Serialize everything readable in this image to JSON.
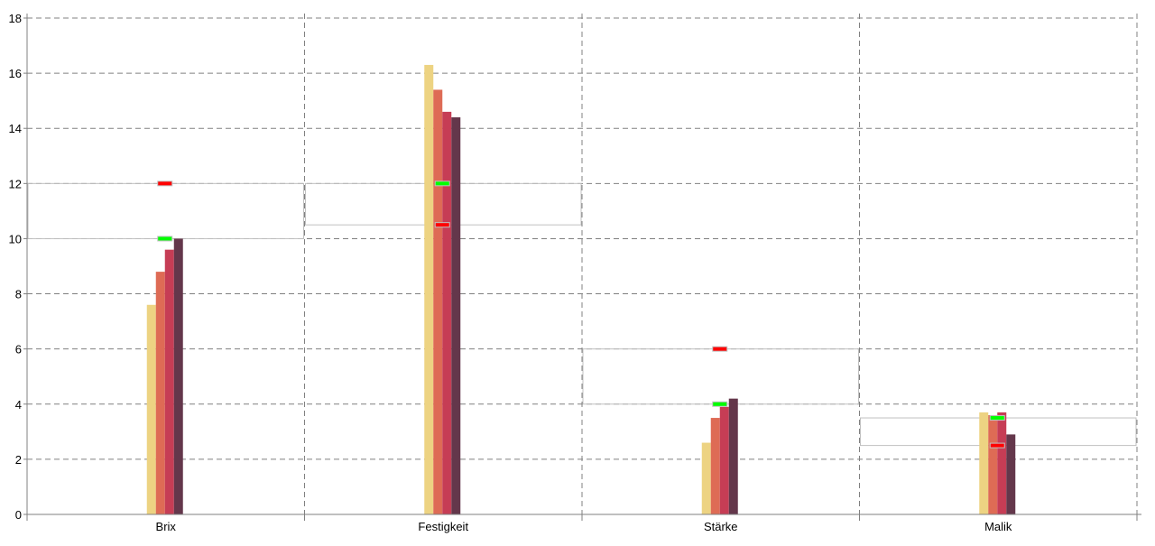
{
  "chart_data": {
    "type": "bar",
    "title": "",
    "xlabel": "",
    "ylabel": "",
    "ylim": [
      0,
      18
    ],
    "yticks": [
      "0",
      "2",
      "4",
      "6",
      "8",
      "10",
      "12",
      "14",
      "16",
      "18"
    ],
    "grid": true,
    "categories": [
      "Brix",
      "Festigkeit",
      "Stärke",
      "Malik"
    ],
    "series": [
      {
        "color": "#EDD382",
        "values": [
          7.6,
          16.3,
          2.6,
          3.7
        ]
      },
      {
        "color": "#DE6B55",
        "values": [
          8.8,
          15.4,
          3.5,
          3.6
        ]
      },
      {
        "color": "#C63D55",
        "values": [
          9.6,
          14.6,
          3.9,
          3.7
        ]
      },
      {
        "color": "#64374B",
        "values": [
          10.0,
          14.4,
          4.2,
          2.9
        ]
      }
    ],
    "green_markers": [
      10,
      12,
      4,
      3.5
    ],
    "red_markers": [
      12,
      10.5,
      6,
      2.5
    ],
    "marker_colors": {
      "green": "#00FF00",
      "red": "#FF0000"
    }
  }
}
